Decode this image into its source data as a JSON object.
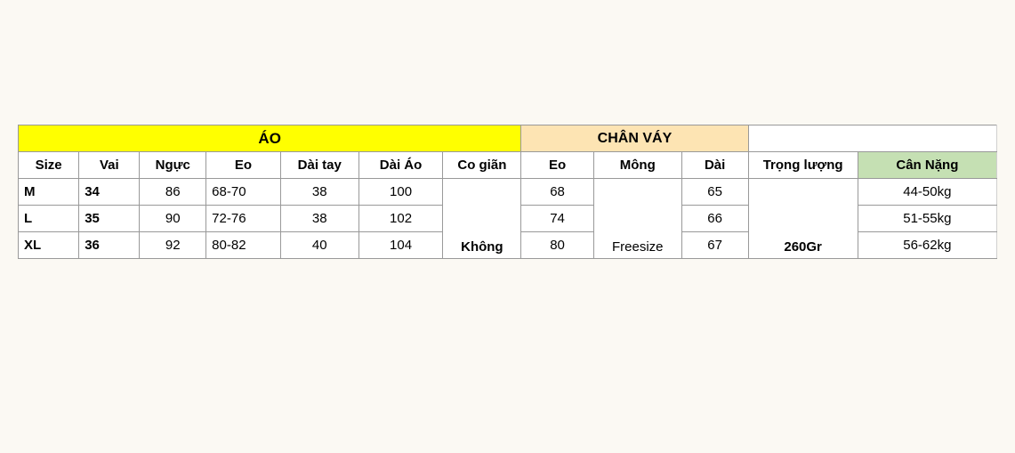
{
  "group_headers": {
    "ao": "ÁO",
    "chan_vay": "CHÂN VÁY",
    "blank": ""
  },
  "columns": {
    "size": "Size",
    "vai": "Vai",
    "nguc": "Ngực",
    "eo_ao": "Eo",
    "dai_tay": "Dài tay",
    "dai_ao": "Dài Áo",
    "co_gian": "Co giãn",
    "eo_cv": "Eo",
    "mong": "Mông",
    "dai": "Dài",
    "trong_luong": "Trọng lượng",
    "can_nang": "Cân Nặng"
  },
  "rows": [
    {
      "size": "M",
      "vai": "34",
      "nguc": "86",
      "eo_ao": "68-70",
      "dai_tay": "38",
      "dai_ao": "100",
      "eo_cv": "68",
      "dai": "65",
      "can_nang": "44-50kg"
    },
    {
      "size": "L",
      "vai": "35",
      "nguc": "90",
      "eo_ao": "72-76",
      "dai_tay": "38",
      "dai_ao": "102",
      "eo_cv": "74",
      "dai": "66",
      "can_nang": "51-55kg"
    },
    {
      "size": "XL",
      "vai": "36",
      "nguc": "92",
      "eo_ao": "80-82",
      "dai_tay": "40",
      "dai_ao": "104",
      "eo_cv": "80",
      "dai": "67",
      "can_nang": "56-62kg"
    }
  ],
  "merged": {
    "co_gian": "Không",
    "mong": "Freesize",
    "trong_luong": "260Gr"
  },
  "style": {
    "bg_page": "#fbf9f3",
    "bg_ao": "#ffff00",
    "bg_chan_vay": "#fde4b3",
    "bg_can_nang": "#c5e0b3",
    "border_color": "#999999",
    "font_family": "Arial, sans-serif",
    "header_fontsize_pt": 12,
    "group_fontsize_pt": 13,
    "cell_fontsize_pt": 11
  },
  "col_widths_pct": [
    6.2,
    6.2,
    6.8,
    7.6,
    8.0,
    8.6,
    8.0,
    7.4,
    9.0,
    6.8,
    11.2,
    14.2
  ]
}
